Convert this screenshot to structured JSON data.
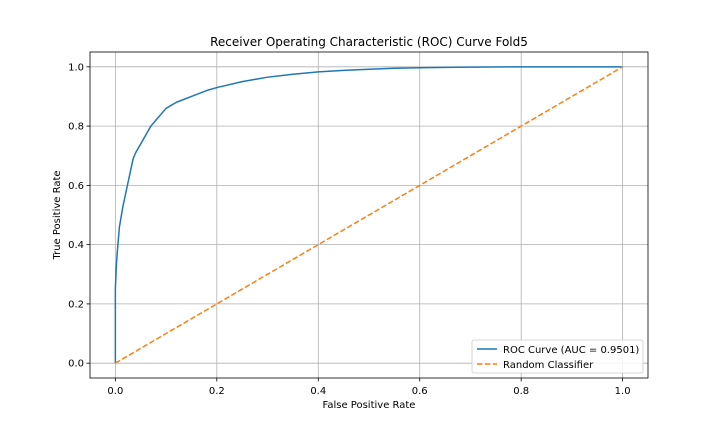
{
  "chart_data": {
    "type": "line",
    "title": "Receiver Operating Characteristic (ROC) Curve Fold5",
    "xlabel": "False Positive Rate",
    "ylabel": "True Positive Rate",
    "xlim": [
      -0.05,
      1.05
    ],
    "ylim": [
      -0.05,
      1.05
    ],
    "xticks": [
      0.0,
      0.2,
      0.4,
      0.6,
      0.8,
      1.0
    ],
    "xtick_labels": [
      "0.0",
      "0.2",
      "0.4",
      "0.6",
      "0.8",
      "1.0"
    ],
    "yticks": [
      0.0,
      0.2,
      0.4,
      0.6,
      0.8,
      1.0
    ],
    "ytick_labels": [
      "0.0",
      "0.2",
      "0.4",
      "0.6",
      "0.8",
      "1.0"
    ],
    "grid": true,
    "legend_position": "lower right",
    "series": [
      {
        "name": "ROC Curve (AUC = 0.9501)",
        "color": "#1f77b4",
        "style": "solid",
        "x": [
          0.0,
          0.0,
          0.002,
          0.004,
          0.006,
          0.008,
          0.01,
          0.015,
          0.02,
          0.025,
          0.03,
          0.035,
          0.04,
          0.05,
          0.06,
          0.07,
          0.08,
          0.09,
          0.1,
          0.12,
          0.15,
          0.18,
          0.2,
          0.25,
          0.3,
          0.35,
          0.4,
          0.45,
          0.5,
          0.55,
          0.6,
          0.65,
          0.7,
          0.8,
          0.9,
          1.0
        ],
        "y": [
          0.0,
          0.25,
          0.33,
          0.38,
          0.42,
          0.46,
          0.48,
          0.53,
          0.57,
          0.61,
          0.65,
          0.69,
          0.71,
          0.74,
          0.77,
          0.8,
          0.82,
          0.84,
          0.86,
          0.88,
          0.9,
          0.92,
          0.93,
          0.95,
          0.965,
          0.975,
          0.983,
          0.988,
          0.992,
          0.995,
          0.997,
          0.998,
          0.999,
          1.0,
          1.0,
          1.0
        ]
      },
      {
        "name": "Random Classifier",
        "color": "#ff7f0e",
        "style": "dashed",
        "x": [
          0.0,
          1.0
        ],
        "y": [
          0.0,
          1.0
        ]
      }
    ]
  }
}
